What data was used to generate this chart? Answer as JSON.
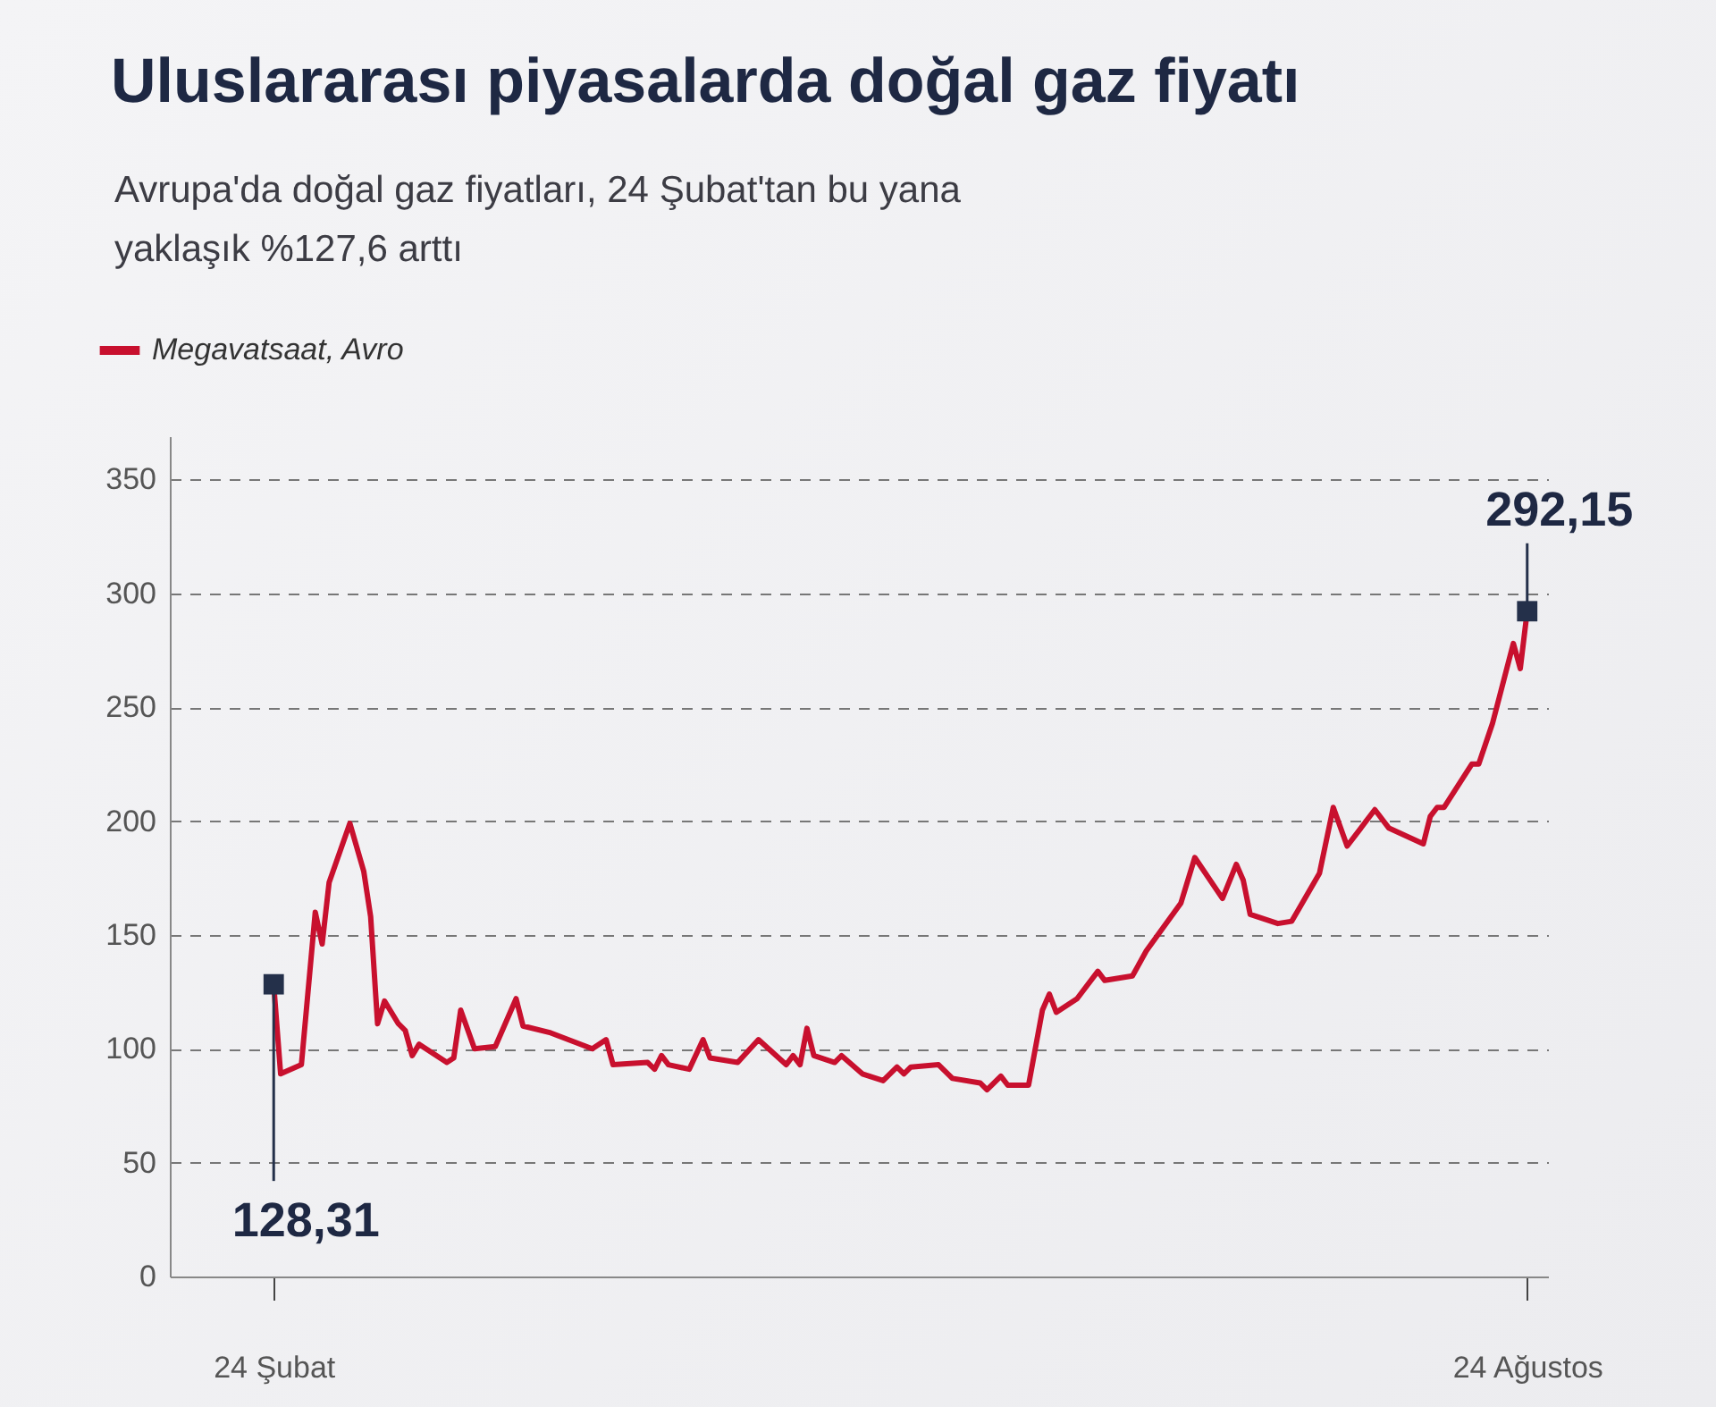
{
  "chart_data": {
    "type": "line",
    "title": "Uluslararası piyasalarda doğal gaz fiyatı",
    "subtitle": "Avrupa'da doğal gaz fiyatları, 24 Şubat'tan bu yana yaklaşık %127,6 arttı",
    "x": [
      "--02-24",
      "--02-25",
      "--02-28",
      "--03-02",
      "--03-03",
      "--03-04",
      "--03-07",
      "--03-09",
      "--03-10",
      "--03-11",
      "--03-12",
      "--03-14",
      "--03-15",
      "--03-16",
      "--03-17",
      "--03-21",
      "--03-22",
      "--03-23",
      "--03-25",
      "--03-28",
      "--03-31",
      "--04-01",
      "--04-05",
      "--04-11",
      "--04-13",
      "--04-14",
      "--04-19",
      "--04-20",
      "--04-21",
      "--04-22",
      "--04-25",
      "--04-27",
      "--04-28",
      "--05-02",
      "--05-05",
      "--05-09",
      "--05-10",
      "--05-11",
      "--05-12",
      "--05-13",
      "--05-16",
      "--05-17",
      "--05-20",
      "--05-23",
      "--05-25",
      "--05-26",
      "--05-27",
      "--05-31",
      "--06-02",
      "--06-06",
      "--06-07",
      "--06-09",
      "--06-10",
      "--06-13",
      "--06-15",
      "--06-16",
      "--06-17",
      "--06-20",
      "--06-23",
      "--06-24",
      "--06-28",
      "--06-30",
      "--07-05",
      "--07-07",
      "--07-11",
      "--07-13",
      "--07-14",
      "--07-15",
      "--07-19",
      "--07-21",
      "--07-25",
      "--07-27",
      "--07-29",
      "--08-02",
      "--08-04",
      "--08-09",
      "--08-10",
      "--08-11",
      "--08-12",
      "--08-16",
      "--08-17",
      "--08-19",
      "--08-22",
      "--08-23",
      "--08-24"
    ],
    "series": [
      {
        "name": "Megavatsaat, Avro",
        "color": "#c8102e",
        "values": [
          128.31,
          89,
          93,
          160,
          146,
          173,
          199,
          178,
          158,
          111,
          121,
          111,
          108,
          97,
          102,
          94,
          96,
          117,
          100,
          101,
          122,
          110,
          107,
          100,
          104,
          93,
          94,
          91,
          97,
          93,
          91,
          104,
          96,
          94,
          104,
          93,
          97,
          93,
          109,
          97,
          94,
          97,
          89,
          86,
          92,
          89,
          92,
          93,
          87,
          85,
          82,
          88,
          84,
          84,
          117,
          124,
          116,
          122,
          134,
          130,
          132,
          143,
          164,
          184,
          166,
          181,
          174,
          159,
          155,
          156,
          177,
          206,
          189,
          205,
          197,
          190,
          202,
          206,
          206,
          225,
          225,
          243,
          278,
          267,
          292.15
        ]
      }
    ],
    "annotations": [
      {
        "text": "128,31",
        "x": "--02-24",
        "y": 128.31
      },
      {
        "text": "292,15",
        "x": "--08-24",
        "y": 292.15
      }
    ],
    "xlim": [
      "--02-09",
      "--08-27"
    ],
    "xticks": [
      {
        "value": "--02-24",
        "label": "24 Şubat"
      },
      {
        "value": "--08-24",
        "label": "24 Ağustos"
      }
    ],
    "ylim": [
      0,
      369
    ],
    "yticks": [
      0,
      50,
      100,
      150,
      200,
      250,
      300,
      350
    ],
    "grid": "y",
    "legend": "top left"
  }
}
